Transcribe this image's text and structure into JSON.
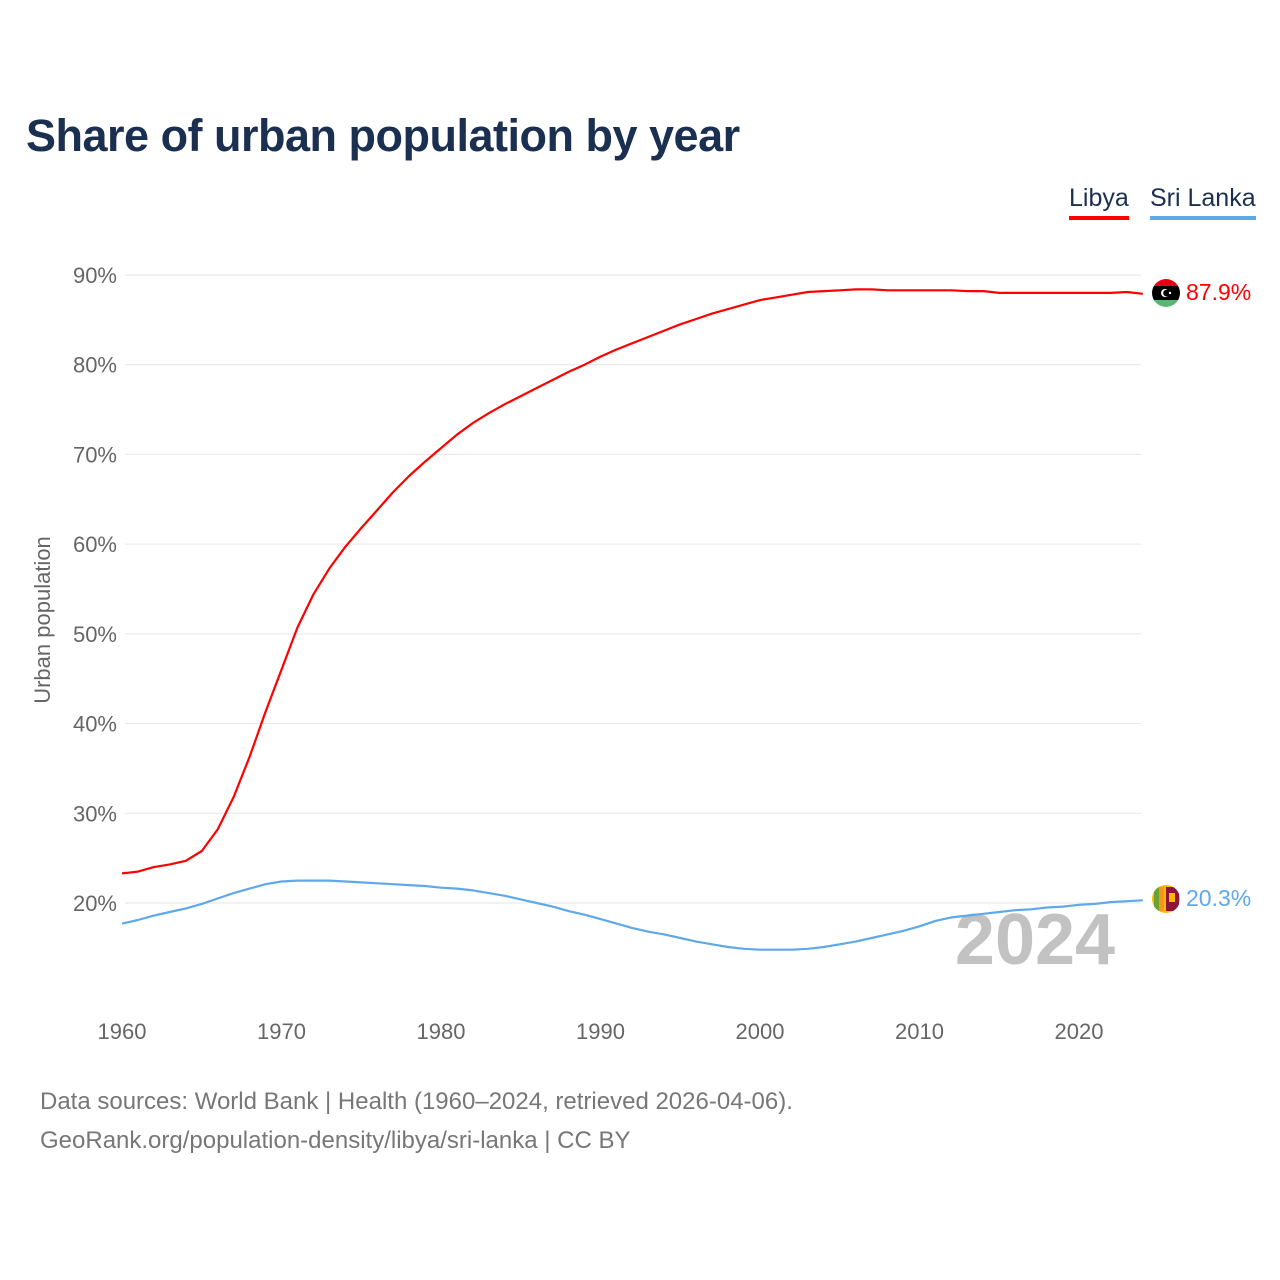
{
  "title": "Share of urban population by year",
  "legend": [
    {
      "label": "Libya",
      "color": "#ff0000"
    },
    {
      "label": "Sri Lanka",
      "color": "#5fa8ea"
    }
  ],
  "watermark_year": "2024",
  "footer": {
    "line1": "Data sources: World Bank | Health (1960–2024, retrieved 2026-04-06).",
    "line2": "GeoRank.org/population-density/libya/sri-lanka | CC BY"
  },
  "chart_data": {
    "type": "line",
    "title": "Share of urban population by year",
    "xlabel": "",
    "ylabel": "Urban population",
    "xlim": [
      1960,
      2024
    ],
    "ylim": [
      10,
      92
    ],
    "x_ticks": [
      1960,
      1970,
      1980,
      1990,
      2000,
      2010,
      2020
    ],
    "x_tick_labels": [
      "1960",
      "1970",
      "1980",
      "1990",
      "2000",
      "2010",
      "2020"
    ],
    "y_ticks": [
      20,
      30,
      40,
      50,
      60,
      70,
      80,
      90
    ],
    "y_tick_labels": [
      "20%",
      "30%",
      "40%",
      "50%",
      "60%",
      "70%",
      "80%",
      "90%"
    ],
    "grid": true,
    "legend_position": "top-right",
    "x": [
      1960,
      1961,
      1962,
      1963,
      1964,
      1965,
      1966,
      1967,
      1968,
      1969,
      1970,
      1971,
      1972,
      1973,
      1974,
      1975,
      1976,
      1977,
      1978,
      1979,
      1980,
      1981,
      1982,
      1983,
      1984,
      1985,
      1986,
      1987,
      1988,
      1989,
      1990,
      1991,
      1992,
      1993,
      1994,
      1995,
      1996,
      1997,
      1998,
      1999,
      2000,
      2001,
      2002,
      2003,
      2004,
      2005,
      2006,
      2007,
      2008,
      2009,
      2010,
      2011,
      2012,
      2013,
      2014,
      2015,
      2016,
      2017,
      2018,
      2019,
      2020,
      2021,
      2022,
      2023,
      2024
    ],
    "series": [
      {
        "name": "Libya",
        "color": "#ff0000",
        "end_label": "87.9%",
        "values": [
          23.3,
          23.5,
          24.0,
          24.3,
          24.7,
          25.8,
          28.2,
          31.8,
          36.3,
          41.3,
          46.0,
          50.7,
          54.4,
          57.3,
          59.7,
          61.8,
          63.8,
          65.8,
          67.6,
          69.2,
          70.7,
          72.2,
          73.5,
          74.6,
          75.6,
          76.5,
          77.4,
          78.3,
          79.2,
          80.0,
          80.9,
          81.7,
          82.4,
          83.1,
          83.8,
          84.5,
          85.1,
          85.7,
          86.2,
          86.7,
          87.2,
          87.5,
          87.8,
          88.1,
          88.2,
          88.3,
          88.4,
          88.4,
          88.3,
          88.3,
          88.3,
          88.3,
          88.3,
          88.2,
          88.2,
          88.0,
          88.0,
          88.0,
          88.0,
          88.0,
          88.0,
          88.0,
          88.0,
          88.1,
          87.9
        ]
      },
      {
        "name": "Sri Lanka",
        "color": "#5fa8ea",
        "end_label": "20.3%",
        "values": [
          17.7,
          18.1,
          18.6,
          19.0,
          19.4,
          19.9,
          20.5,
          21.1,
          21.6,
          22.1,
          22.4,
          22.5,
          22.5,
          22.5,
          22.4,
          22.3,
          22.2,
          22.1,
          22.0,
          21.9,
          21.7,
          21.6,
          21.4,
          21.1,
          20.8,
          20.4,
          20.0,
          19.6,
          19.1,
          18.7,
          18.2,
          17.7,
          17.2,
          16.8,
          16.5,
          16.1,
          15.7,
          15.4,
          15.1,
          14.9,
          14.8,
          14.8,
          14.8,
          14.9,
          15.1,
          15.4,
          15.7,
          16.1,
          16.5,
          16.9,
          17.4,
          18.0,
          18.4,
          18.6,
          18.8,
          19.0,
          19.2,
          19.3,
          19.5,
          19.6,
          19.8,
          19.9,
          20.1,
          20.2,
          20.3
        ]
      }
    ]
  }
}
